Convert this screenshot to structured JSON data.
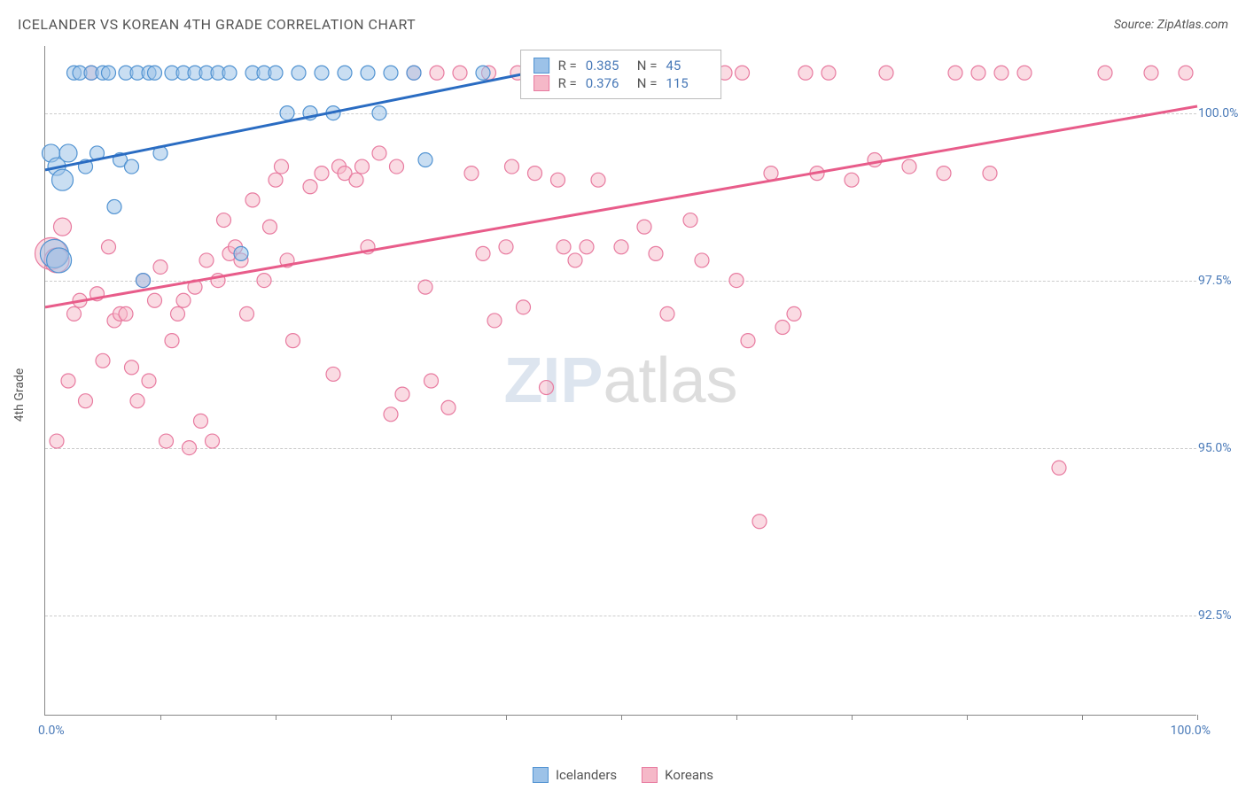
{
  "title": "ICELANDER VS KOREAN 4TH GRADE CORRELATION CHART",
  "source": "Source: ZipAtlas.com",
  "yaxis_title": "4th Grade",
  "watermark": {
    "part1": "ZIP",
    "part2": "atlas"
  },
  "chart": {
    "type": "scatter",
    "background_color": "#ffffff",
    "grid_color": "#cccccc",
    "axis_color": "#888888",
    "label_color": "#4a7ab8",
    "text_color": "#555555",
    "xlim": [
      0,
      100
    ],
    "ylim": [
      91,
      101
    ],
    "yticks": [
      {
        "value": 92.5,
        "label": "92.5%"
      },
      {
        "value": 95.0,
        "label": "95.0%"
      },
      {
        "value": 97.5,
        "label": "97.5%"
      },
      {
        "value": 100.0,
        "label": "100.0%"
      }
    ],
    "xticks": [
      10,
      20,
      30,
      40,
      50,
      60,
      70,
      80,
      90,
      100
    ],
    "xaxis_min_label": "0.0%",
    "xaxis_max_label": "100.0%",
    "series": [
      {
        "name": "Icelanders",
        "fill_color": "#9cc2e8",
        "stroke_color": "#5193d2",
        "line_color": "#2a6cc2",
        "marker_radius": 8,
        "marker_opacity": 0.55,
        "regression": {
          "x1": 0,
          "y1": 99.15,
          "x2": 42,
          "y2": 100.6
        },
        "r": "0.385",
        "n": "45",
        "points": [
          {
            "x": 0.5,
            "y": 99.4,
            "r": 10
          },
          {
            "x": 1.0,
            "y": 99.2,
            "r": 10
          },
          {
            "x": 1.5,
            "y": 99.0,
            "r": 12
          },
          {
            "x": 0.8,
            "y": 97.9,
            "r": 16
          },
          {
            "x": 1.2,
            "y": 97.8,
            "r": 14
          },
          {
            "x": 2.0,
            "y": 99.4,
            "r": 10
          },
          {
            "x": 2.5,
            "y": 100.6,
            "r": 8
          },
          {
            "x": 3.0,
            "y": 100.6,
            "r": 8
          },
          {
            "x": 3.5,
            "y": 99.2,
            "r": 8
          },
          {
            "x": 4.0,
            "y": 100.6,
            "r": 8
          },
          {
            "x": 4.5,
            "y": 99.4,
            "r": 8
          },
          {
            "x": 5.0,
            "y": 100.6,
            "r": 8
          },
          {
            "x": 5.5,
            "y": 100.6,
            "r": 8
          },
          {
            "x": 6.0,
            "y": 98.6,
            "r": 8
          },
          {
            "x": 6.5,
            "y": 99.3,
            "r": 8
          },
          {
            "x": 7.0,
            "y": 100.6,
            "r": 8
          },
          {
            "x": 7.5,
            "y": 99.2,
            "r": 8
          },
          {
            "x": 8.0,
            "y": 100.6,
            "r": 8
          },
          {
            "x": 8.5,
            "y": 97.5,
            "r": 8
          },
          {
            "x": 9.0,
            "y": 100.6,
            "r": 8
          },
          {
            "x": 9.5,
            "y": 100.6,
            "r": 8
          },
          {
            "x": 10.0,
            "y": 99.4,
            "r": 8
          },
          {
            "x": 11.0,
            "y": 100.6,
            "r": 8
          },
          {
            "x": 12.0,
            "y": 100.6,
            "r": 8
          },
          {
            "x": 13.0,
            "y": 100.6,
            "r": 8
          },
          {
            "x": 14.0,
            "y": 100.6,
            "r": 8
          },
          {
            "x": 15.0,
            "y": 100.6,
            "r": 8
          },
          {
            "x": 16.0,
            "y": 100.6,
            "r": 8
          },
          {
            "x": 17.0,
            "y": 97.9,
            "r": 8
          },
          {
            "x": 18.0,
            "y": 100.6,
            "r": 8
          },
          {
            "x": 19.0,
            "y": 100.6,
            "r": 8
          },
          {
            "x": 20.0,
            "y": 100.6,
            "r": 8
          },
          {
            "x": 21.0,
            "y": 100.0,
            "r": 8
          },
          {
            "x": 22.0,
            "y": 100.6,
            "r": 8
          },
          {
            "x": 23.0,
            "y": 100.0,
            "r": 8
          },
          {
            "x": 24.0,
            "y": 100.6,
            "r": 8
          },
          {
            "x": 25.0,
            "y": 100.0,
            "r": 8
          },
          {
            "x": 26.0,
            "y": 100.6,
            "r": 8
          },
          {
            "x": 28.0,
            "y": 100.6,
            "r": 8
          },
          {
            "x": 29.0,
            "y": 100.0,
            "r": 8
          },
          {
            "x": 30.0,
            "y": 100.6,
            "r": 8
          },
          {
            "x": 32.0,
            "y": 100.6,
            "r": 8
          },
          {
            "x": 33.0,
            "y": 99.3,
            "r": 8
          },
          {
            "x": 38.0,
            "y": 100.6,
            "r": 8
          },
          {
            "x": 42.0,
            "y": 100.6,
            "r": 8
          }
        ]
      },
      {
        "name": "Koreans",
        "fill_color": "#f5b8c8",
        "stroke_color": "#e87ba0",
        "line_color": "#e85c8a",
        "marker_radius": 8,
        "marker_opacity": 0.5,
        "regression": {
          "x1": 0,
          "y1": 97.1,
          "x2": 100,
          "y2": 100.1
        },
        "r": "0.376",
        "n": "115",
        "points": [
          {
            "x": 0.5,
            "y": 97.9,
            "r": 18
          },
          {
            "x": 1.0,
            "y": 97.8,
            "r": 14
          },
          {
            "x": 1.5,
            "y": 98.3,
            "r": 10
          },
          {
            "x": 1.0,
            "y": 95.1,
            "r": 8
          },
          {
            "x": 2.0,
            "y": 96.0,
            "r": 8
          },
          {
            "x": 2.5,
            "y": 97.0,
            "r": 8
          },
          {
            "x": 3.0,
            "y": 97.2,
            "r": 8
          },
          {
            "x": 3.5,
            "y": 95.7,
            "r": 8
          },
          {
            "x": 4.0,
            "y": 100.6,
            "r": 8
          },
          {
            "x": 4.5,
            "y": 97.3,
            "r": 8
          },
          {
            "x": 5.0,
            "y": 96.3,
            "r": 8
          },
          {
            "x": 5.5,
            "y": 98.0,
            "r": 8
          },
          {
            "x": 6.0,
            "y": 96.9,
            "r": 8
          },
          {
            "x": 6.5,
            "y": 97.0,
            "r": 8
          },
          {
            "x": 7.0,
            "y": 97.0,
            "r": 8
          },
          {
            "x": 7.5,
            "y": 96.2,
            "r": 8
          },
          {
            "x": 8.0,
            "y": 95.7,
            "r": 8
          },
          {
            "x": 8.5,
            "y": 97.5,
            "r": 8
          },
          {
            "x": 9.0,
            "y": 96.0,
            "r": 8
          },
          {
            "x": 9.5,
            "y": 97.2,
            "r": 8
          },
          {
            "x": 10.0,
            "y": 97.7,
            "r": 8
          },
          {
            "x": 10.5,
            "y": 95.1,
            "r": 8
          },
          {
            "x": 11.0,
            "y": 96.6,
            "r": 8
          },
          {
            "x": 11.5,
            "y": 97.0,
            "r": 8
          },
          {
            "x": 12.0,
            "y": 97.2,
            "r": 8
          },
          {
            "x": 12.5,
            "y": 95.0,
            "r": 8
          },
          {
            "x": 13.0,
            "y": 97.4,
            "r": 8
          },
          {
            "x": 13.5,
            "y": 95.4,
            "r": 8
          },
          {
            "x": 14.0,
            "y": 97.8,
            "r": 8
          },
          {
            "x": 14.5,
            "y": 95.1,
            "r": 8
          },
          {
            "x": 15.0,
            "y": 97.5,
            "r": 8
          },
          {
            "x": 15.5,
            "y": 98.4,
            "r": 8
          },
          {
            "x": 16.0,
            "y": 97.9,
            "r": 8
          },
          {
            "x": 16.5,
            "y": 98.0,
            "r": 8
          },
          {
            "x": 17.0,
            "y": 97.8,
            "r": 8
          },
          {
            "x": 17.5,
            "y": 97.0,
            "r": 8
          },
          {
            "x": 18.0,
            "y": 98.7,
            "r": 8
          },
          {
            "x": 19.0,
            "y": 97.5,
            "r": 8
          },
          {
            "x": 19.5,
            "y": 98.3,
            "r": 8
          },
          {
            "x": 20.0,
            "y": 99.0,
            "r": 8
          },
          {
            "x": 20.5,
            "y": 99.2,
            "r": 8
          },
          {
            "x": 21.0,
            "y": 97.8,
            "r": 8
          },
          {
            "x": 21.5,
            "y": 96.6,
            "r": 8
          },
          {
            "x": 23.0,
            "y": 98.9,
            "r": 8
          },
          {
            "x": 24.0,
            "y": 99.1,
            "r": 8
          },
          {
            "x": 25.0,
            "y": 96.1,
            "r": 8
          },
          {
            "x": 25.5,
            "y": 99.2,
            "r": 8
          },
          {
            "x": 26.0,
            "y": 99.1,
            "r": 8
          },
          {
            "x": 27.0,
            "y": 99.0,
            "r": 8
          },
          {
            "x": 27.5,
            "y": 99.2,
            "r": 8
          },
          {
            "x": 28.0,
            "y": 98.0,
            "r": 8
          },
          {
            "x": 29.0,
            "y": 99.4,
            "r": 8
          },
          {
            "x": 30.0,
            "y": 95.5,
            "r": 8
          },
          {
            "x": 30.5,
            "y": 99.2,
            "r": 8
          },
          {
            "x": 31.0,
            "y": 95.8,
            "r": 8
          },
          {
            "x": 32.0,
            "y": 100.6,
            "r": 8
          },
          {
            "x": 33.0,
            "y": 97.4,
            "r": 8
          },
          {
            "x": 33.5,
            "y": 96.0,
            "r": 8
          },
          {
            "x": 34.0,
            "y": 100.6,
            "r": 8
          },
          {
            "x": 35.0,
            "y": 95.6,
            "r": 8
          },
          {
            "x": 36.0,
            "y": 100.6,
            "r": 8
          },
          {
            "x": 37.0,
            "y": 99.1,
            "r": 8
          },
          {
            "x": 38.0,
            "y": 97.9,
            "r": 8
          },
          {
            "x": 38.5,
            "y": 100.6,
            "r": 8
          },
          {
            "x": 39.0,
            "y": 96.9,
            "r": 8
          },
          {
            "x": 40.0,
            "y": 98.0,
            "r": 8
          },
          {
            "x": 40.5,
            "y": 99.2,
            "r": 8
          },
          {
            "x": 41.0,
            "y": 100.6,
            "r": 8
          },
          {
            "x": 41.5,
            "y": 97.1,
            "r": 8
          },
          {
            "x": 42.0,
            "y": 100.6,
            "r": 8
          },
          {
            "x": 42.5,
            "y": 99.1,
            "r": 8
          },
          {
            "x": 43.0,
            "y": 100.6,
            "r": 8
          },
          {
            "x": 43.5,
            "y": 95.9,
            "r": 8
          },
          {
            "x": 44.0,
            "y": 100.6,
            "r": 8
          },
          {
            "x": 44.5,
            "y": 99.0,
            "r": 8
          },
          {
            "x": 45.0,
            "y": 98.0,
            "r": 8
          },
          {
            "x": 45.5,
            "y": 100.6,
            "r": 8
          },
          {
            "x": 46.0,
            "y": 97.8,
            "r": 8
          },
          {
            "x": 47.0,
            "y": 98.0,
            "r": 8
          },
          {
            "x": 48.0,
            "y": 99.0,
            "r": 8
          },
          {
            "x": 49.0,
            "y": 100.6,
            "r": 8
          },
          {
            "x": 50.0,
            "y": 98.0,
            "r": 8
          },
          {
            "x": 51.0,
            "y": 100.6,
            "r": 8
          },
          {
            "x": 52.0,
            "y": 98.3,
            "r": 8
          },
          {
            "x": 53.0,
            "y": 97.9,
            "r": 8
          },
          {
            "x": 54.0,
            "y": 97.0,
            "r": 8
          },
          {
            "x": 55.0,
            "y": 100.6,
            "r": 8
          },
          {
            "x": 56.0,
            "y": 98.4,
            "r": 8
          },
          {
            "x": 57.0,
            "y": 97.8,
            "r": 8
          },
          {
            "x": 58.0,
            "y": 100.6,
            "r": 8
          },
          {
            "x": 59.0,
            "y": 100.6,
            "r": 8
          },
          {
            "x": 60.0,
            "y": 97.5,
            "r": 8
          },
          {
            "x": 60.5,
            "y": 100.6,
            "r": 8
          },
          {
            "x": 61.0,
            "y": 96.6,
            "r": 8
          },
          {
            "x": 62.0,
            "y": 93.9,
            "r": 8
          },
          {
            "x": 63.0,
            "y": 99.1,
            "r": 8
          },
          {
            "x": 64.0,
            "y": 96.8,
            "r": 8
          },
          {
            "x": 65.0,
            "y": 97.0,
            "r": 8
          },
          {
            "x": 66.0,
            "y": 100.6,
            "r": 8
          },
          {
            "x": 67.0,
            "y": 99.1,
            "r": 8
          },
          {
            "x": 68.0,
            "y": 100.6,
            "r": 8
          },
          {
            "x": 70.0,
            "y": 99.0,
            "r": 8
          },
          {
            "x": 72.0,
            "y": 99.3,
            "r": 8
          },
          {
            "x": 73.0,
            "y": 100.6,
            "r": 8
          },
          {
            "x": 75.0,
            "y": 99.2,
            "r": 8
          },
          {
            "x": 78.0,
            "y": 99.1,
            "r": 8
          },
          {
            "x": 79.0,
            "y": 100.6,
            "r": 8
          },
          {
            "x": 81.0,
            "y": 100.6,
            "r": 8
          },
          {
            "x": 82.0,
            "y": 99.1,
            "r": 8
          },
          {
            "x": 83.0,
            "y": 100.6,
            "r": 8
          },
          {
            "x": 85.0,
            "y": 100.6,
            "r": 8
          },
          {
            "x": 88.0,
            "y": 94.7,
            "r": 8
          },
          {
            "x": 92.0,
            "y": 100.6,
            "r": 8
          },
          {
            "x": 96.0,
            "y": 100.6,
            "r": 8
          },
          {
            "x": 99.0,
            "y": 100.6,
            "r": 8
          }
        ]
      }
    ]
  },
  "top_legend": {
    "r_label": "R =",
    "n_label": "N ="
  },
  "bottom_legend": {
    "series1": "Icelanders",
    "series2": "Koreans"
  }
}
